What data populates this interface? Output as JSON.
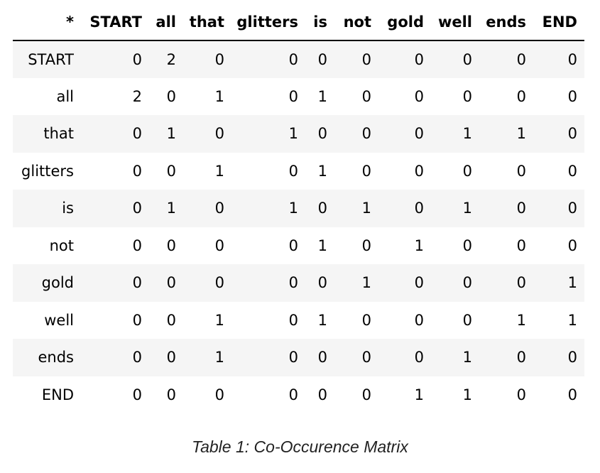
{
  "table": {
    "corner_label": "*",
    "columns": [
      "START",
      "all",
      "that",
      "glitters",
      "is",
      "not",
      "gold",
      "well",
      "ends",
      "END"
    ],
    "rows": [
      {
        "label": "START",
        "values": [
          "0",
          "2",
          "0",
          "0",
          "0",
          "0",
          "0",
          "0",
          "0",
          "0"
        ]
      },
      {
        "label": "all",
        "values": [
          "2",
          "0",
          "1",
          "0",
          "1",
          "0",
          "0",
          "0",
          "0",
          "0"
        ]
      },
      {
        "label": "that",
        "values": [
          "0",
          "1",
          "0",
          "1",
          "0",
          "0",
          "0",
          "1",
          "1",
          "0"
        ]
      },
      {
        "label": "glitters",
        "values": [
          "0",
          "0",
          "1",
          "0",
          "1",
          "0",
          "0",
          "0",
          "0",
          "0"
        ]
      },
      {
        "label": "is",
        "values": [
          "0",
          "1",
          "0",
          "1",
          "0",
          "1",
          "0",
          "1",
          "0",
          "0"
        ]
      },
      {
        "label": "not",
        "values": [
          "0",
          "0",
          "0",
          "0",
          "1",
          "0",
          "1",
          "0",
          "0",
          "0"
        ]
      },
      {
        "label": "gold",
        "values": [
          "0",
          "0",
          "0",
          "0",
          "0",
          "1",
          "0",
          "0",
          "0",
          "1"
        ]
      },
      {
        "label": "well",
        "values": [
          "0",
          "0",
          "1",
          "0",
          "1",
          "0",
          "0",
          "0",
          "1",
          "1"
        ]
      },
      {
        "label": "ends",
        "values": [
          "0",
          "0",
          "1",
          "0",
          "0",
          "0",
          "0",
          "1",
          "0",
          "0"
        ]
      },
      {
        "label": "END",
        "values": [
          "0",
          "0",
          "0",
          "0",
          "0",
          "0",
          "1",
          "1",
          "0",
          "0"
        ]
      }
    ]
  },
  "caption": "Table 1: Co-Occurence Matrix"
}
